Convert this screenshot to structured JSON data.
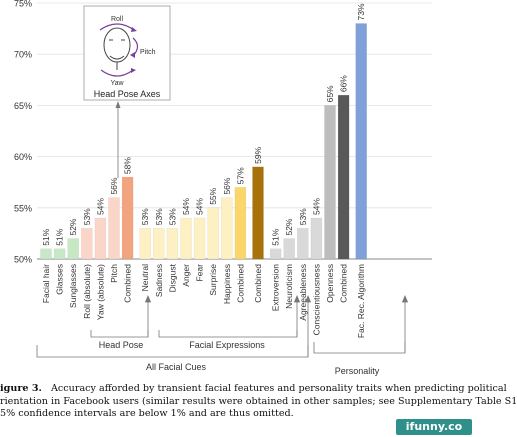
{
  "chart_data": {
    "type": "bar",
    "y_ticks": [
      "50%",
      "55%",
      "60%",
      "65%",
      "70%",
      "75%"
    ],
    "ylim": [
      50,
      75
    ],
    "grid": true,
    "bars": [
      {
        "label": "Facial hair",
        "value": 51,
        "value_label": "51%",
        "color": "#c7e8c4"
      },
      {
        "label": "Glasses",
        "value": 51,
        "value_label": "51%",
        "color": "#c7e8c4"
      },
      {
        "label": "Sunglasses",
        "value": 52,
        "value_label": "52%",
        "color": "#c7e8c4"
      },
      {
        "label": "Roll (absolute)",
        "value": 53,
        "value_label": "53%",
        "color": "#fbd5c8"
      },
      {
        "label": "Yaw (absolute)",
        "value": 54,
        "value_label": "54%",
        "color": "#fbd5c8"
      },
      {
        "label": "Pitch",
        "value": 56,
        "value_label": "56%",
        "color": "#fbd5c8"
      },
      {
        "label": "Combined",
        "value": 58,
        "value_label": "58%",
        "color": "#f2a47e"
      },
      {
        "label": "Neutral",
        "value": 53,
        "value_label": "53%",
        "color": "#fdf0c2"
      },
      {
        "label": "Sadness",
        "value": 53,
        "value_label": "53%",
        "color": "#fdf0c2"
      },
      {
        "label": "Disgust",
        "value": 53,
        "value_label": "53%",
        "color": "#fdf0c2"
      },
      {
        "label": "Anger",
        "value": 54,
        "value_label": "54%",
        "color": "#fdf0c2"
      },
      {
        "label": "Fear",
        "value": 54,
        "value_label": "54%",
        "color": "#fdf0c2"
      },
      {
        "label": "Surprise",
        "value": 55,
        "value_label": "55%",
        "color": "#fdf0c2"
      },
      {
        "label": "Happiness",
        "value": 56,
        "value_label": "56%",
        "color": "#fdf0c2"
      },
      {
        "label": "Combined",
        "value": 57,
        "value_label": "57%",
        "color": "#fbd66b"
      },
      {
        "label": "Combined",
        "value": 59,
        "value_label": "59%",
        "color": "#a8720a"
      },
      {
        "label": "Extroversion",
        "value": 51,
        "value_label": "51%",
        "color": "#d9d9d9"
      },
      {
        "label": "Neuroticism",
        "value": 52,
        "value_label": "52%",
        "color": "#d9d9d9"
      },
      {
        "label": "Agreeableness",
        "value": 53,
        "value_label": "53%",
        "color": "#d9d9d9"
      },
      {
        "label": "Conscientiousness",
        "value": 54,
        "value_label": "54%",
        "color": "#d9d9d9"
      },
      {
        "label": "Openness",
        "value": 65,
        "value_label": "65%",
        "color": "#bdbdbd"
      },
      {
        "label": "Combined",
        "value": 66,
        "value_label": "66%",
        "color": "#595959"
      },
      {
        "label": "Fac. Rec. Algorithm",
        "value": 73,
        "value_label": "73%",
        "color": "#7fa0d9"
      }
    ],
    "groups": {
      "head_pose": "Head Pose",
      "facial_expressions": "Facial Expressions",
      "all_facial_cues": "All Facial Cues",
      "personality": "Personality"
    }
  },
  "inset": {
    "roll": "Roll",
    "pitch": "Pitch",
    "yaw": "Yaw",
    "title": "Head Pose Axes"
  },
  "caption": {
    "fig": "igure 3.",
    "line1": "Accuracy afforded by transient facial features and personality traits when predicting political",
    "line2": "rientation in Facebook users (similar results were obtained in other samples; see Supplementary Table S1",
    "line3": "5% confidence intervals are below 1% and are thus omitted."
  },
  "watermark": "ifunny.co"
}
